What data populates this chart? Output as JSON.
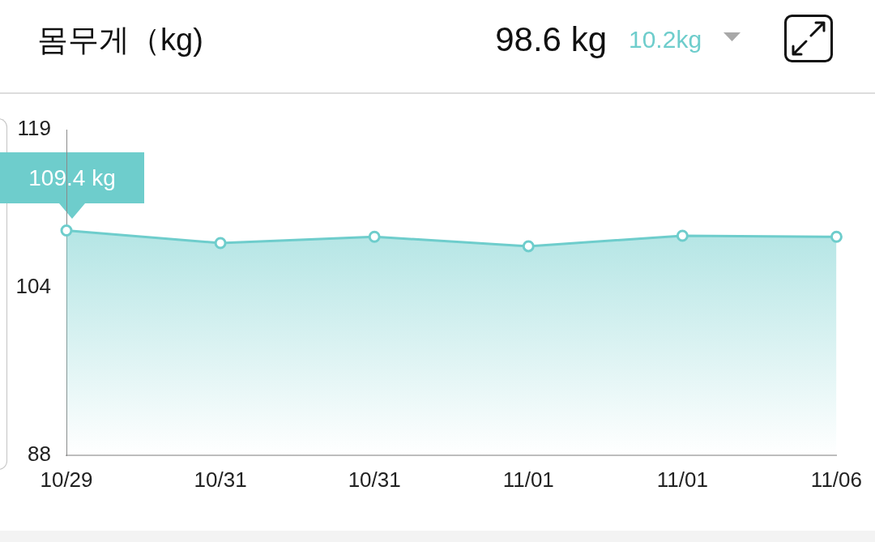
{
  "chart_data": {
    "type": "area",
    "title": "몸무게（kg)",
    "annotations": [
      "98.6 kg",
      "10.2kg",
      {
        "text": "109.4 kg",
        "x": "10/29",
        "y": 109.4
      }
    ],
    "categories": [
      "10/29",
      "10/31",
      "10/31",
      "11/01",
      "11/01",
      "11/06"
    ],
    "values": [
      109.4,
      108.2,
      108.8,
      107.9,
      108.9,
      108.8
    ],
    "color": "#6ecdcc",
    "ylim": [
      88,
      119
    ],
    "yticks": [
      88,
      104,
      119
    ],
    "grid": false,
    "legend": false,
    "marker": "circle"
  }
}
